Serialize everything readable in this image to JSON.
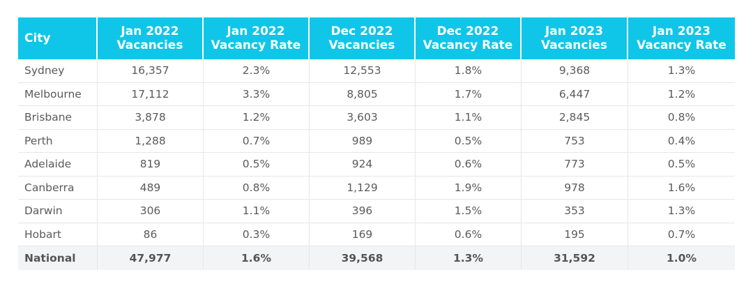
{
  "table": {
    "headers": [
      {
        "l1": "City",
        "l2": ""
      },
      {
        "l1": "Jan 2022",
        "l2": "Vacancies"
      },
      {
        "l1": "Jan 2022",
        "l2": "Vacancy Rate"
      },
      {
        "l1": "Dec 2022",
        "l2": "Vacancies"
      },
      {
        "l1": "Dec 2022",
        "l2": "Vacancy Rate"
      },
      {
        "l1": "Jan 2023",
        "l2": "Vacancies"
      },
      {
        "l1": "Jan 2023",
        "l2": "Vacancy Rate"
      }
    ],
    "rows": [
      [
        "Sydney",
        "16,357",
        "2.3%",
        "12,553",
        "1.8%",
        "9,368",
        "1.3%"
      ],
      [
        "Melbourne",
        "17,112",
        "3.3%",
        "8,805",
        "1.7%",
        "6,447",
        "1.2%"
      ],
      [
        "Brisbane",
        "3,878",
        "1.2%",
        "3,603",
        "1.1%",
        "2,845",
        "0.8%"
      ],
      [
        "Perth",
        "1,288",
        "0.7%",
        "989",
        "0.5%",
        "753",
        "0.4%"
      ],
      [
        "Adelaide",
        "819",
        "0.5%",
        "924",
        "0.6%",
        "773",
        "0.5%"
      ],
      [
        "Canberra",
        "489",
        "0.8%",
        "1,129",
        "1.9%",
        "978",
        "1.6%"
      ],
      [
        "Darwin",
        "306",
        "1.1%",
        "396",
        "1.5%",
        "353",
        "1.3%"
      ],
      [
        "Hobart",
        "86",
        "0.3%",
        "169",
        "0.6%",
        "195",
        "0.7%"
      ],
      [
        "National",
        "47,977",
        "1.6%",
        "39,568",
        "1.3%",
        "31,592",
        "1.0%"
      ]
    ]
  },
  "colors": {
    "header_bg": "#0fc6e8",
    "header_text": "#ffffff",
    "national_row_bg": "#f2f4f6"
  }
}
